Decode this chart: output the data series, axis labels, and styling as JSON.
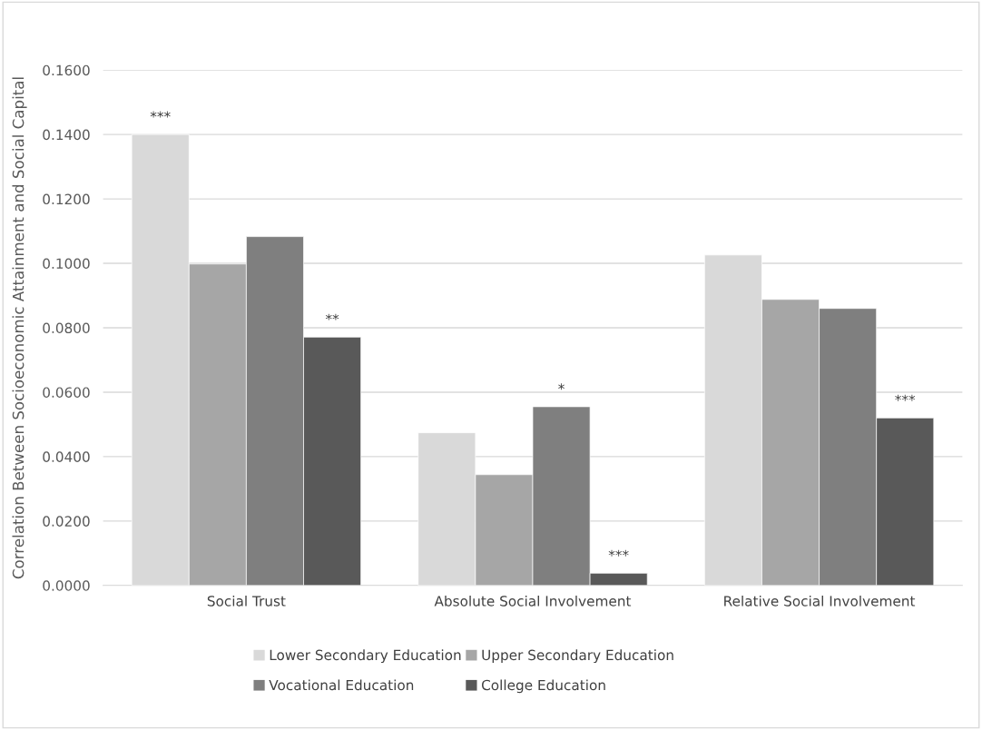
{
  "chart_data": {
    "type": "bar",
    "ylabel": "Correlation Between Socioeconomic Attainment and Social Capital",
    "categories": [
      "Social Trust",
      "Absolute Social Involvement",
      "Relative Social Involvement"
    ],
    "series": [
      {
        "name": "Lower Secondary Education",
        "color": "#d9d9d9",
        "values": [
          0.14,
          0.0474,
          0.1026
        ],
        "value_labels": [
          "***",
          null,
          null
        ]
      },
      {
        "name": "Upper Secondary Education",
        "color": "#a6a6a6",
        "values": [
          0.0998,
          0.0344,
          0.0888
        ],
        "value_labels": [
          null,
          null,
          null
        ]
      },
      {
        "name": "Vocational Education",
        "color": "#7f7f7f",
        "values": [
          0.1083,
          0.0555,
          0.086
        ],
        "value_labels": [
          null,
          "*",
          null
        ]
      },
      {
        "name": "College Education",
        "color": "#595959",
        "values": [
          0.0771,
          0.0038,
          0.052
        ],
        "value_labels": [
          "**",
          "***",
          "***"
        ]
      }
    ],
    "ylim": [
      0,
      0.16
    ],
    "yticks": [
      {
        "value": 0,
        "label": "0.0000"
      },
      {
        "value": 0.02,
        "label": "0.0200"
      },
      {
        "value": 0.04,
        "label": "0.0400"
      },
      {
        "value": 0.06,
        "label": "0.0600"
      },
      {
        "value": 0.08,
        "label": "0.0800"
      },
      {
        "value": 0.1,
        "label": "0.1000"
      },
      {
        "value": 0.12,
        "label": "0.1200"
      },
      {
        "value": 0.14,
        "label": "0.1400"
      },
      {
        "value": 0.16,
        "label": "0.1600"
      }
    ],
    "grid": "y",
    "legend": "bottom"
  }
}
